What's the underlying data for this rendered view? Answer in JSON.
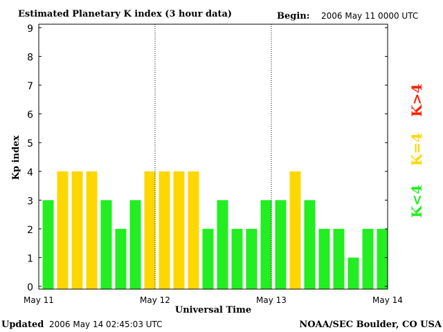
{
  "chart_data": {
    "type": "bar",
    "title": "Estimated Planetary K index (3 hour data)",
    "begin_label": "Begin:",
    "begin_value": "2006 May 11 0000 UTC",
    "xlabel": "Universal Time",
    "ylabel": "Kp index",
    "ylim": [
      0,
      9
    ],
    "yticks": [
      "0",
      "1",
      "2",
      "3",
      "4",
      "5",
      "6",
      "7",
      "8",
      "9"
    ],
    "xticks": [
      "May 11",
      "May 12",
      "May 13",
      "May 14"
    ],
    "values": [
      3,
      4,
      4,
      4,
      3,
      2,
      3,
      4,
      4,
      4,
      4,
      2,
      3,
      2,
      2,
      3,
      3,
      4,
      3,
      2,
      2,
      1,
      2,
      2
    ],
    "legend": [
      {
        "label": "K>4",
        "color": "#ff2000"
      },
      {
        "label": "K=4",
        "color": "#ffd700"
      },
      {
        "label": "K<4",
        "color": "#22ee22"
      }
    ],
    "colors": {
      "low": "#22ee22",
      "equal": "#ffd700",
      "high": "#ff2000"
    }
  },
  "footer": {
    "updated_label": "Updated",
    "updated_value": "2006 May 14 02:45:03 UTC",
    "source": "NOAA/SEC Boulder, CO USA"
  }
}
